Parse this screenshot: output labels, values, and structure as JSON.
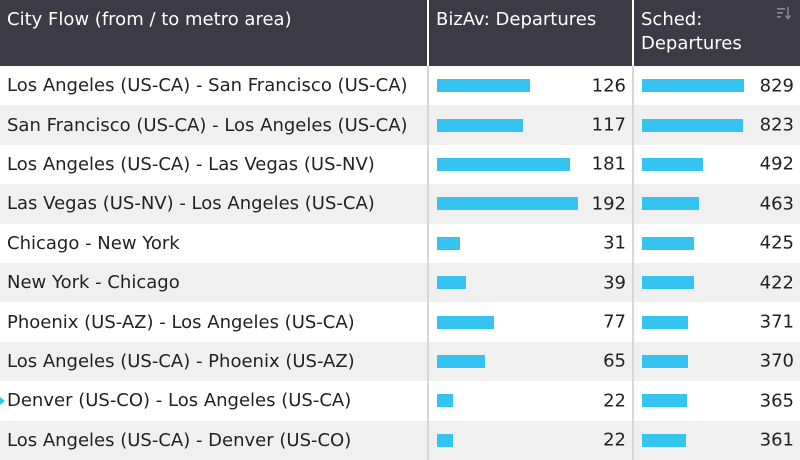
{
  "header": {
    "flow": "City Flow (from / to metro area)",
    "biz": "BizAv: Departures",
    "sched_line1": "Sched:",
    "sched_line2": "Departures",
    "sort_icon": "sort-descending-icon"
  },
  "colors": {
    "header_bg": "#3b3a45",
    "bar": "#35c3f0",
    "row_alt": "#f0f0f0"
  },
  "rows": [
    {
      "flow": "Los Angeles (US-CA) - San Francisco (US-CA)",
      "biz": 126,
      "sched": 829
    },
    {
      "flow": "San Francisco (US-CA) - Los Angeles (US-CA)",
      "biz": 117,
      "sched": 823
    },
    {
      "flow": "Los Angeles (US-CA) - Las Vegas (US-NV)",
      "biz": 181,
      "sched": 492
    },
    {
      "flow": "Las Vegas (US-NV) - Los Angeles (US-CA)",
      "biz": 192,
      "sched": 463
    },
    {
      "flow": "Chicago - New York",
      "biz": 31,
      "sched": 425
    },
    {
      "flow": "New York - Chicago",
      "biz": 39,
      "sched": 422
    },
    {
      "flow": "Phoenix (US-AZ) - Los Angeles (US-CA)",
      "biz": 77,
      "sched": 371
    },
    {
      "flow": "Los Angeles (US-CA) - Phoenix (US-AZ)",
      "biz": 65,
      "sched": 370
    },
    {
      "flow": "Denver (US-CO) - Los Angeles (US-CA)",
      "biz": 22,
      "sched": 365
    },
    {
      "flow": "Los Angeles (US-CA) - Denver (US-CO)",
      "biz": 22,
      "sched": 361
    }
  ]
}
